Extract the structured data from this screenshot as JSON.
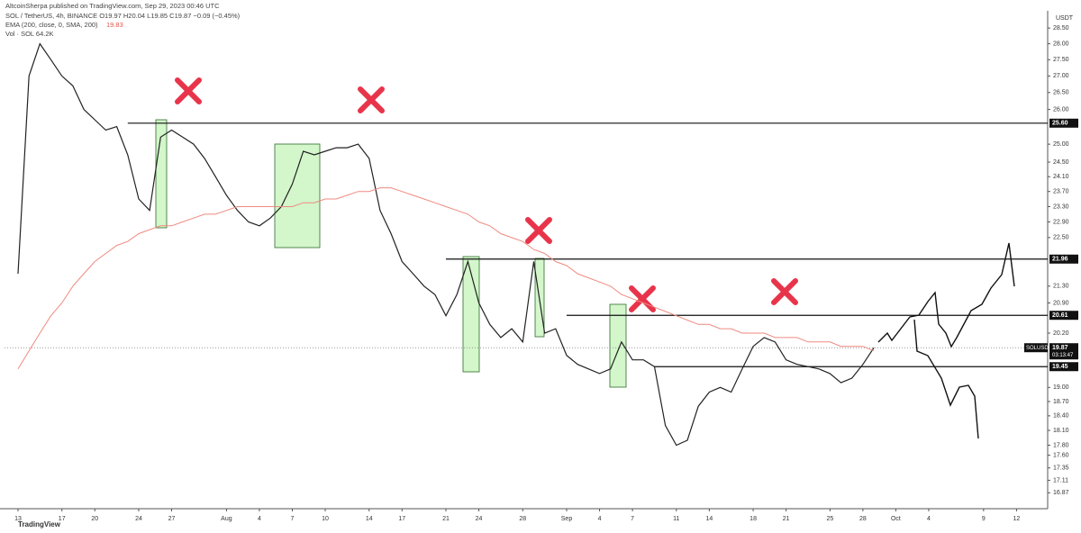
{
  "header": {
    "publisher": "AltcoinSherpa published on TradingView.com, Sep 29, 2023 00:46 UTC",
    "symbol_line": "SOL / TetherUS, 4h, BINANCE  O19.97 H20.04 L19.85 C19.87 −0.09 (−0.45%)",
    "ema_line": "EMA (200, close, 0, SMA, 200)",
    "ema_value": "19.83",
    "vol_line": "Vol · SOL  64.2K",
    "currency": "USDT",
    "brand": "TradingView"
  },
  "price_tag": {
    "symbol": "SOLUSDT",
    "price": 19.87,
    "countdown": "03:13:47"
  },
  "chart_data": {
    "type": "line",
    "log_scale": true,
    "x": [
      0,
      1,
      2,
      3,
      4,
      5,
      6,
      7,
      8,
      9,
      10,
      11,
      12,
      13,
      14,
      15,
      16,
      17,
      18,
      19,
      20,
      21,
      22,
      23,
      24,
      25,
      26,
      27,
      28,
      29,
      30,
      31,
      32,
      33,
      34,
      35,
      36,
      37,
      38,
      39,
      40,
      41,
      42,
      43,
      44,
      45,
      46,
      47,
      48,
      49,
      50,
      51,
      52,
      53,
      54,
      55,
      56,
      57,
      58,
      59,
      60,
      61,
      62,
      63,
      64,
      65,
      66,
      67,
      68,
      69,
      70,
      71,
      72,
      73,
      74,
      75,
      76,
      77,
      78
    ],
    "series": [
      {
        "name": "SOL / TetherUS",
        "color": "#222222",
        "values": [
          21.6,
          27.0,
          28.0,
          27.5,
          27.0,
          26.7,
          26.0,
          25.7,
          25.4,
          25.5,
          24.7,
          23.5,
          23.2,
          25.2,
          25.4,
          25.2,
          25.0,
          24.6,
          24.1,
          23.6,
          23.2,
          22.9,
          22.8,
          23.0,
          23.3,
          23.9,
          24.8,
          24.7,
          24.8,
          24.9,
          24.9,
          25.0,
          24.6,
          23.2,
          22.6,
          21.9,
          21.6,
          21.3,
          21.1,
          20.6,
          21.1,
          21.9,
          20.9,
          20.4,
          20.1,
          20.3,
          20.0,
          21.9,
          20.2,
          20.3,
          19.7,
          19.5,
          19.4,
          19.3,
          19.4,
          20.0,
          19.6,
          19.6,
          19.45,
          18.2,
          17.8,
          17.9,
          18.6,
          18.9,
          19.0,
          18.9,
          19.4,
          19.9,
          20.1,
          20.0,
          19.6,
          19.5,
          19.45,
          19.4,
          19.3,
          19.1,
          19.2,
          19.5,
          19.87
        ]
      },
      {
        "name": "EMA",
        "color": "#ef8a80",
        "values": [
          19.4,
          19.8,
          20.2,
          20.6,
          20.9,
          21.3,
          21.6,
          21.9,
          22.1,
          22.3,
          22.4,
          22.6,
          22.7,
          22.8,
          22.8,
          22.9,
          23.0,
          23.1,
          23.1,
          23.2,
          23.3,
          23.3,
          23.3,
          23.3,
          23.3,
          23.3,
          23.4,
          23.4,
          23.5,
          23.5,
          23.6,
          23.7,
          23.7,
          23.8,
          23.8,
          23.7,
          23.6,
          23.5,
          23.4,
          23.3,
          23.2,
          23.1,
          22.9,
          22.8,
          22.6,
          22.5,
          22.4,
          22.2,
          22.1,
          21.9,
          21.8,
          21.6,
          21.5,
          21.4,
          21.3,
          21.1,
          21.0,
          20.9,
          20.8,
          20.7,
          20.6,
          20.5,
          20.4,
          20.4,
          20.3,
          20.3,
          20.2,
          20.2,
          20.2,
          20.1,
          20.1,
          20.1,
          20.0,
          20.0,
          20.0,
          19.9,
          19.9,
          19.9,
          19.8
        ]
      }
    ],
    "xlim": [
      -1.23,
      93.84
    ],
    "xticks": [
      {
        "value": 0,
        "label": "13"
      },
      {
        "value": 4,
        "label": "17"
      },
      {
        "value": 7,
        "label": "20"
      },
      {
        "value": 11,
        "label": "24"
      },
      {
        "value": 14,
        "label": "27"
      },
      {
        "value": 19,
        "label": "Aug"
      },
      {
        "value": 22,
        "label": "4"
      },
      {
        "value": 25,
        "label": "7"
      },
      {
        "value": 28,
        "label": "10"
      },
      {
        "value": 32,
        "label": "14"
      },
      {
        "value": 35,
        "label": "17"
      },
      {
        "value": 39,
        "label": "21"
      },
      {
        "value": 42,
        "label": "24"
      },
      {
        "value": 46,
        "label": "28"
      },
      {
        "value": 50,
        "label": "Sep"
      },
      {
        "value": 53,
        "label": "4"
      },
      {
        "value": 56,
        "label": "7"
      },
      {
        "value": 60,
        "label": "11"
      },
      {
        "value": 63,
        "label": "14"
      },
      {
        "value": 67,
        "label": "18"
      },
      {
        "value": 70,
        "label": "21"
      },
      {
        "value": 74,
        "label": "25"
      },
      {
        "value": 77,
        "label": "28"
      },
      {
        "value": 80,
        "label": "Oct"
      },
      {
        "value": 83,
        "label": "4"
      },
      {
        "value": 88,
        "label": "9"
      },
      {
        "value": 91,
        "label": "12"
      }
    ],
    "ylim": [
      16.57,
      29.06
    ],
    "yticks": [
      {
        "value": 28.5,
        "label": "28.50"
      },
      {
        "value": 28,
        "label": "28.00"
      },
      {
        "value": 27.5,
        "label": "27.50"
      },
      {
        "value": 27,
        "label": "27.00"
      },
      {
        "value": 26.5,
        "label": "26.50"
      },
      {
        "value": 26,
        "label": "26.00"
      },
      {
        "value": 25,
        "label": "25.00"
      },
      {
        "value": 24.5,
        "label": "24.50"
      },
      {
        "value": 24.1,
        "label": "24.10"
      },
      {
        "value": 23.7,
        "label": "23.70"
      },
      {
        "value": 23.3,
        "label": "23.30"
      },
      {
        "value": 22.9,
        "label": "22.90"
      },
      {
        "value": 22.5,
        "label": "22.50"
      },
      {
        "value": 21.3,
        "label": "21.30"
      },
      {
        "value": 20.9,
        "label": "20.90"
      },
      {
        "value": 20.2,
        "label": "20.20"
      },
      {
        "value": 19,
        "label": "19.00"
      },
      {
        "value": 18.7,
        "label": "18.70"
      },
      {
        "value": 18.4,
        "label": "18.40"
      },
      {
        "value": 18.1,
        "label": "18.10"
      },
      {
        "value": 17.8,
        "label": "17.80"
      },
      {
        "value": 17.6,
        "label": "17.60"
      },
      {
        "value": 17.35,
        "label": "17.35"
      },
      {
        "value": 17.11,
        "label": "17.11"
      },
      {
        "value": 16.87,
        "label": "16.87"
      }
    ],
    "levels": [
      {
        "value": 25.6,
        "label": "25.60"
      },
      {
        "value": 21.96,
        "label": "21.96"
      },
      {
        "value": 20.61,
        "label": "20.61"
      },
      {
        "value": 19.45,
        "label": "19.45"
      }
    ]
  }
}
